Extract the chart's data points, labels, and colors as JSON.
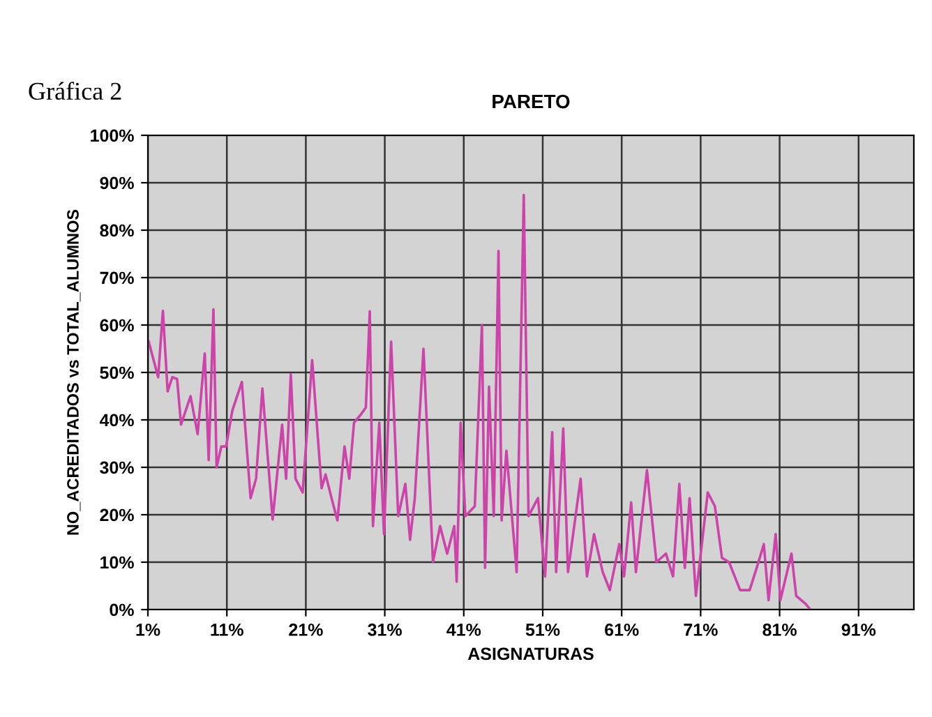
{
  "chart_data": {
    "type": "line",
    "title": "PARETO",
    "xlabel": "ASIGNATURAS",
    "ylabel": "NO_ACREDITADOS vs TOTAL_ALUMNOS",
    "annotations": [
      "Gráfica 2"
    ],
    "x": [
      1.1,
      2.3,
      2.9,
      3.5,
      4.1,
      4.7,
      5.2,
      6.4,
      7.3,
      8.2,
      8.7,
      9.3,
      9.7,
      10.3,
      10.9,
      11.7,
      12.9,
      14.0,
      14.7,
      15.5,
      16.8,
      18.0,
      18.5,
      19.1,
      19.7,
      20.6,
      21.8,
      23.0,
      23.5,
      24.4,
      25.0,
      25.9,
      26.5,
      27.1,
      28.0,
      28.6,
      29.1,
      29.5,
      30.3,
      30.9,
      31.8,
      32.7,
      33.6,
      34.2,
      34.8,
      35.9,
      37.1,
      38.0,
      38.9,
      39.8,
      40.1,
      40.6,
      41.2,
      42.4,
      43.3,
      43.7,
      44.2,
      44.8,
      45.4,
      45.8,
      46.4,
      47.7,
      48.6,
      49.2,
      50.4,
      51.3,
      52.2,
      52.7,
      53.6,
      54.2,
      55.8,
      56.6,
      57.5,
      58.6,
      59.5,
      60.7,
      61.3,
      62.2,
      62.8,
      64.2,
      65.4,
      66.6,
      67.5,
      68.3,
      69.0,
      69.6,
      70.4,
      71.9,
      72.8,
      73.7,
      74.6,
      76.0,
      77.2,
      78.1,
      79.0,
      79.6,
      80.5,
      81.1,
      82.5,
      83.1,
      84.3,
      84.9
    ],
    "series": [
      {
        "color": "#cc44aa",
        "values": [
          56.5,
          49,
          63,
          46,
          49,
          48.6,
          39,
          45,
          37,
          54,
          31.5,
          63.3,
          30,
          34.4,
          34.4,
          42,
          48,
          23.5,
          27.6,
          46.6,
          19,
          39,
          27.6,
          49.6,
          27.6,
          24.7,
          52.6,
          25.6,
          28.5,
          22.6,
          18.8,
          34.4,
          27.6,
          39.4,
          41.2,
          42.6,
          62.9,
          17.6,
          39.4,
          15.9,
          56.5,
          19.7,
          26.5,
          14.7,
          23.5,
          55,
          10,
          17.6,
          11.8,
          17.6,
          5.9,
          39.4,
          19.7,
          21.8,
          60,
          8.8,
          47,
          19.7,
          75.6,
          18.8,
          33.5,
          7.9,
          87.4,
          19.7,
          23.5,
          7,
          37.4,
          7.9,
          38.2,
          7.9,
          27.6,
          7,
          15.9,
          7.9,
          4.1,
          13.8,
          7,
          22.6,
          7.9,
          29.4,
          10,
          11.8,
          7,
          26.5,
          8.8,
          23.5,
          2.9,
          24.7,
          21.8,
          10.9,
          10,
          4.1,
          4.1,
          8.8,
          13.8,
          2,
          15.9,
          2,
          11.8,
          2.9,
          1.2,
          0
        ]
      }
    ],
    "xlim": [
      1,
      98
    ],
    "xticks": [
      {
        "value": 1,
        "label": "1%"
      },
      {
        "value": 11,
        "label": "11%"
      },
      {
        "value": 21,
        "label": "21%"
      },
      {
        "value": 31,
        "label": "31%"
      },
      {
        "value": 41,
        "label": "41%"
      },
      {
        "value": 51,
        "label": "51%"
      },
      {
        "value": 61,
        "label": "61%"
      },
      {
        "value": 71,
        "label": "71%"
      },
      {
        "value": 81,
        "label": "81%"
      },
      {
        "value": 91,
        "label": "91%"
      }
    ],
    "ylim": [
      0,
      100
    ],
    "yticks": [
      {
        "value": 0,
        "label": "0%"
      },
      {
        "value": 10,
        "label": "10%"
      },
      {
        "value": 20,
        "label": "20%"
      },
      {
        "value": 30,
        "label": "30%"
      },
      {
        "value": 40,
        "label": "40%"
      },
      {
        "value": 50,
        "label": "50%"
      },
      {
        "value": 60,
        "label": "60%"
      },
      {
        "value": 70,
        "label": "70%"
      },
      {
        "value": 80,
        "label": "80%"
      },
      {
        "value": 90,
        "label": "90%"
      },
      {
        "value": 100,
        "label": "100%"
      }
    ],
    "grid": true,
    "legend": false,
    "marker": "none",
    "line_style": "solid"
  }
}
